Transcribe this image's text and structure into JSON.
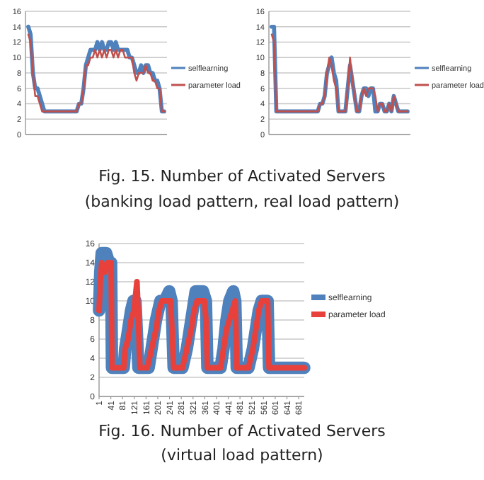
{
  "chart_data": [
    {
      "type": "line",
      "categories": [
        null,
        null,
        null,
        null,
        null,
        null,
        null,
        null,
        null,
        null,
        null,
        null,
        null,
        null,
        null,
        null,
        null,
        null,
        null,
        null,
        null,
        null,
        null,
        null,
        null,
        null,
        null,
        null,
        null,
        null,
        null,
        null,
        null,
        null,
        null,
        null,
        null,
        null,
        null,
        null,
        null,
        null,
        null,
        null,
        null,
        null,
        null,
        null,
        null,
        null,
        null,
        null,
        null,
        null,
        null,
        null,
        null,
        null,
        null,
        null
      ],
      "series": [
        {
          "name": "selflearning",
          "color": "#4f81bd",
          "values": [
            14,
            13,
            8,
            6,
            6,
            5,
            4,
            3,
            3,
            3,
            3,
            3,
            3,
            3,
            3,
            3,
            3,
            3,
            3,
            3,
            3,
            3,
            4,
            4,
            6,
            9,
            10,
            11,
            11,
            11,
            12,
            11,
            12,
            11,
            11,
            12,
            12,
            11,
            12,
            11,
            11,
            11,
            11,
            11,
            10,
            10,
            9,
            8,
            8,
            9,
            8,
            9,
            9,
            8,
            8,
            7,
            7,
            6,
            3,
            3
          ]
        },
        {
          "name": "parameter load",
          "color": "#c0504d",
          "values": [
            13,
            12,
            8,
            5,
            5,
            4,
            3,
            3,
            3,
            3,
            3,
            3,
            3,
            3,
            3,
            3,
            3,
            3,
            3,
            3,
            3,
            3,
            4,
            4,
            6,
            9,
            9,
            10,
            10,
            11,
            10,
            11,
            10,
            11,
            10,
            11,
            11,
            10,
            11,
            10,
            11,
            11,
            10,
            10,
            10,
            10,
            8,
            7,
            8,
            8,
            8,
            9,
            8,
            8,
            7,
            7,
            6,
            6,
            3,
            3
          ]
        }
      ],
      "ylim": [
        0,
        16
      ],
      "yticks": [
        0,
        2,
        4,
        6,
        8,
        10,
        12,
        14,
        16
      ],
      "grid": "y",
      "legend": "right",
      "marker": "none",
      "line_style": "solid",
      "tick_labels": "y",
      "annotations": [
        "Fig. 15. Number of Activated Servers",
        "(banking load pattern, real load pattern)"
      ]
    },
    {
      "type": "line",
      "categories": [
        null,
        null,
        null,
        null,
        null,
        null,
        null,
        null,
        null,
        null,
        null,
        null,
        null,
        null,
        null,
        null,
        null,
        null,
        null,
        null,
        null,
        null,
        null,
        null,
        null,
        null,
        null,
        null,
        null,
        null,
        null,
        null,
        null,
        null,
        null,
        null,
        null,
        null,
        null,
        null,
        null,
        null,
        null,
        null,
        null,
        null,
        null,
        null,
        null,
        null,
        null,
        null,
        null,
        null,
        null,
        null,
        null,
        null,
        null,
        null
      ],
      "series": [
        {
          "name": "selflearning",
          "color": "#4f81bd",
          "values": [
            14,
            14,
            3,
            3,
            3,
            3,
            3,
            3,
            3,
            3,
            3,
            3,
            3,
            3,
            3,
            3,
            3,
            3,
            3,
            3,
            3,
            4,
            4,
            5,
            8,
            9,
            10,
            8,
            7,
            3,
            3,
            3,
            3,
            6,
            9,
            7,
            5,
            3,
            3,
            5,
            6,
            6,
            5,
            6,
            6,
            3,
            3,
            4,
            4,
            3,
            3,
            4,
            3,
            5,
            4,
            3,
            3,
            3,
            3,
            3
          ]
        },
        {
          "name": "parameter load",
          "color": "#c0504d",
          "values": [
            13,
            12,
            3,
            3,
            3,
            3,
            3,
            3,
            3,
            3,
            3,
            3,
            3,
            3,
            3,
            3,
            3,
            3,
            3,
            3,
            3,
            4,
            4,
            5,
            8,
            10,
            9,
            7,
            6,
            3,
            3,
            3,
            3,
            6,
            10,
            7,
            5,
            3,
            3,
            5,
            6,
            5,
            6,
            6,
            6,
            5,
            3,
            4,
            4,
            3,
            3,
            4,
            3,
            5,
            4,
            3,
            3,
            3,
            3,
            3
          ]
        }
      ],
      "ylim": [
        0,
        16
      ],
      "yticks": [
        0,
        2,
        4,
        6,
        8,
        10,
        12,
        14,
        16
      ],
      "grid": "y",
      "legend": "right",
      "marker": "none",
      "line_style": "solid",
      "tick_labels": "y"
    },
    {
      "type": "line",
      "series": [
        {
          "name": "selflearning",
          "color": "#4f81bd",
          "x": [
            1,
            5,
            10,
            25,
            35,
            42,
            45,
            85,
            90,
            100,
            110,
            118,
            125,
            135,
            160,
            170,
            180,
            195,
            210,
            225,
            240,
            248,
            255,
            285,
            300,
            315,
            325,
            330,
            355,
            365,
            370,
            400,
            415,
            425,
            435,
            445,
            458,
            465,
            470,
            510,
            525,
            535,
            545,
            555,
            575,
            580,
            700
          ],
          "values": [
            9,
            13,
            15,
            15,
            14,
            14,
            3,
            3,
            5,
            7,
            9,
            10,
            10,
            3,
            3,
            3,
            5,
            8,
            10,
            10,
            11,
            10,
            3,
            3,
            5,
            8,
            10,
            11,
            11,
            10,
            3,
            3,
            3,
            5,
            8,
            10,
            11,
            10,
            3,
            3,
            5,
            7,
            9,
            10,
            10,
            3,
            3
          ]
        },
        {
          "name": "parameter load",
          "color": "#e8413c",
          "x": [
            1,
            5,
            10,
            20,
            30,
            42,
            45,
            85,
            90,
            100,
            110,
            120,
            130,
            135,
            140,
            165,
            180,
            195,
            205,
            215,
            235,
            245,
            255,
            285,
            300,
            315,
            325,
            335,
            360,
            365,
            370,
            400,
            415,
            425,
            435,
            445,
            455,
            465,
            470,
            510,
            525,
            535,
            545,
            555,
            575,
            580,
            700
          ],
          "values": [
            9,
            12,
            14,
            13,
            14,
            14,
            3,
            3,
            5,
            6,
            8,
            9,
            12,
            8,
            3,
            3,
            5,
            7,
            9,
            10,
            10,
            10,
            3,
            3,
            5,
            7,
            9,
            10,
            10,
            8,
            3,
            3,
            3,
            5,
            7,
            8,
            9,
            10,
            3,
            3,
            5,
            7,
            9,
            10,
            10,
            3,
            3
          ]
        }
      ],
      "xlim": [
        1,
        700
      ],
      "xticks": [
        1,
        41,
        81,
        121,
        161,
        201,
        241,
        281,
        321,
        361,
        401,
        441,
        481,
        521,
        561,
        601,
        641,
        681
      ],
      "ylim": [
        0,
        16
      ],
      "yticks": [
        0,
        2,
        4,
        6,
        8,
        10,
        12,
        14,
        16
      ],
      "grid": "y",
      "legend": "right",
      "marker": "none",
      "line_style": "solid",
      "annotations": [
        "Fig. 16. Number of Activated Servers",
        "(virtual load pattern)"
      ]
    }
  ]
}
